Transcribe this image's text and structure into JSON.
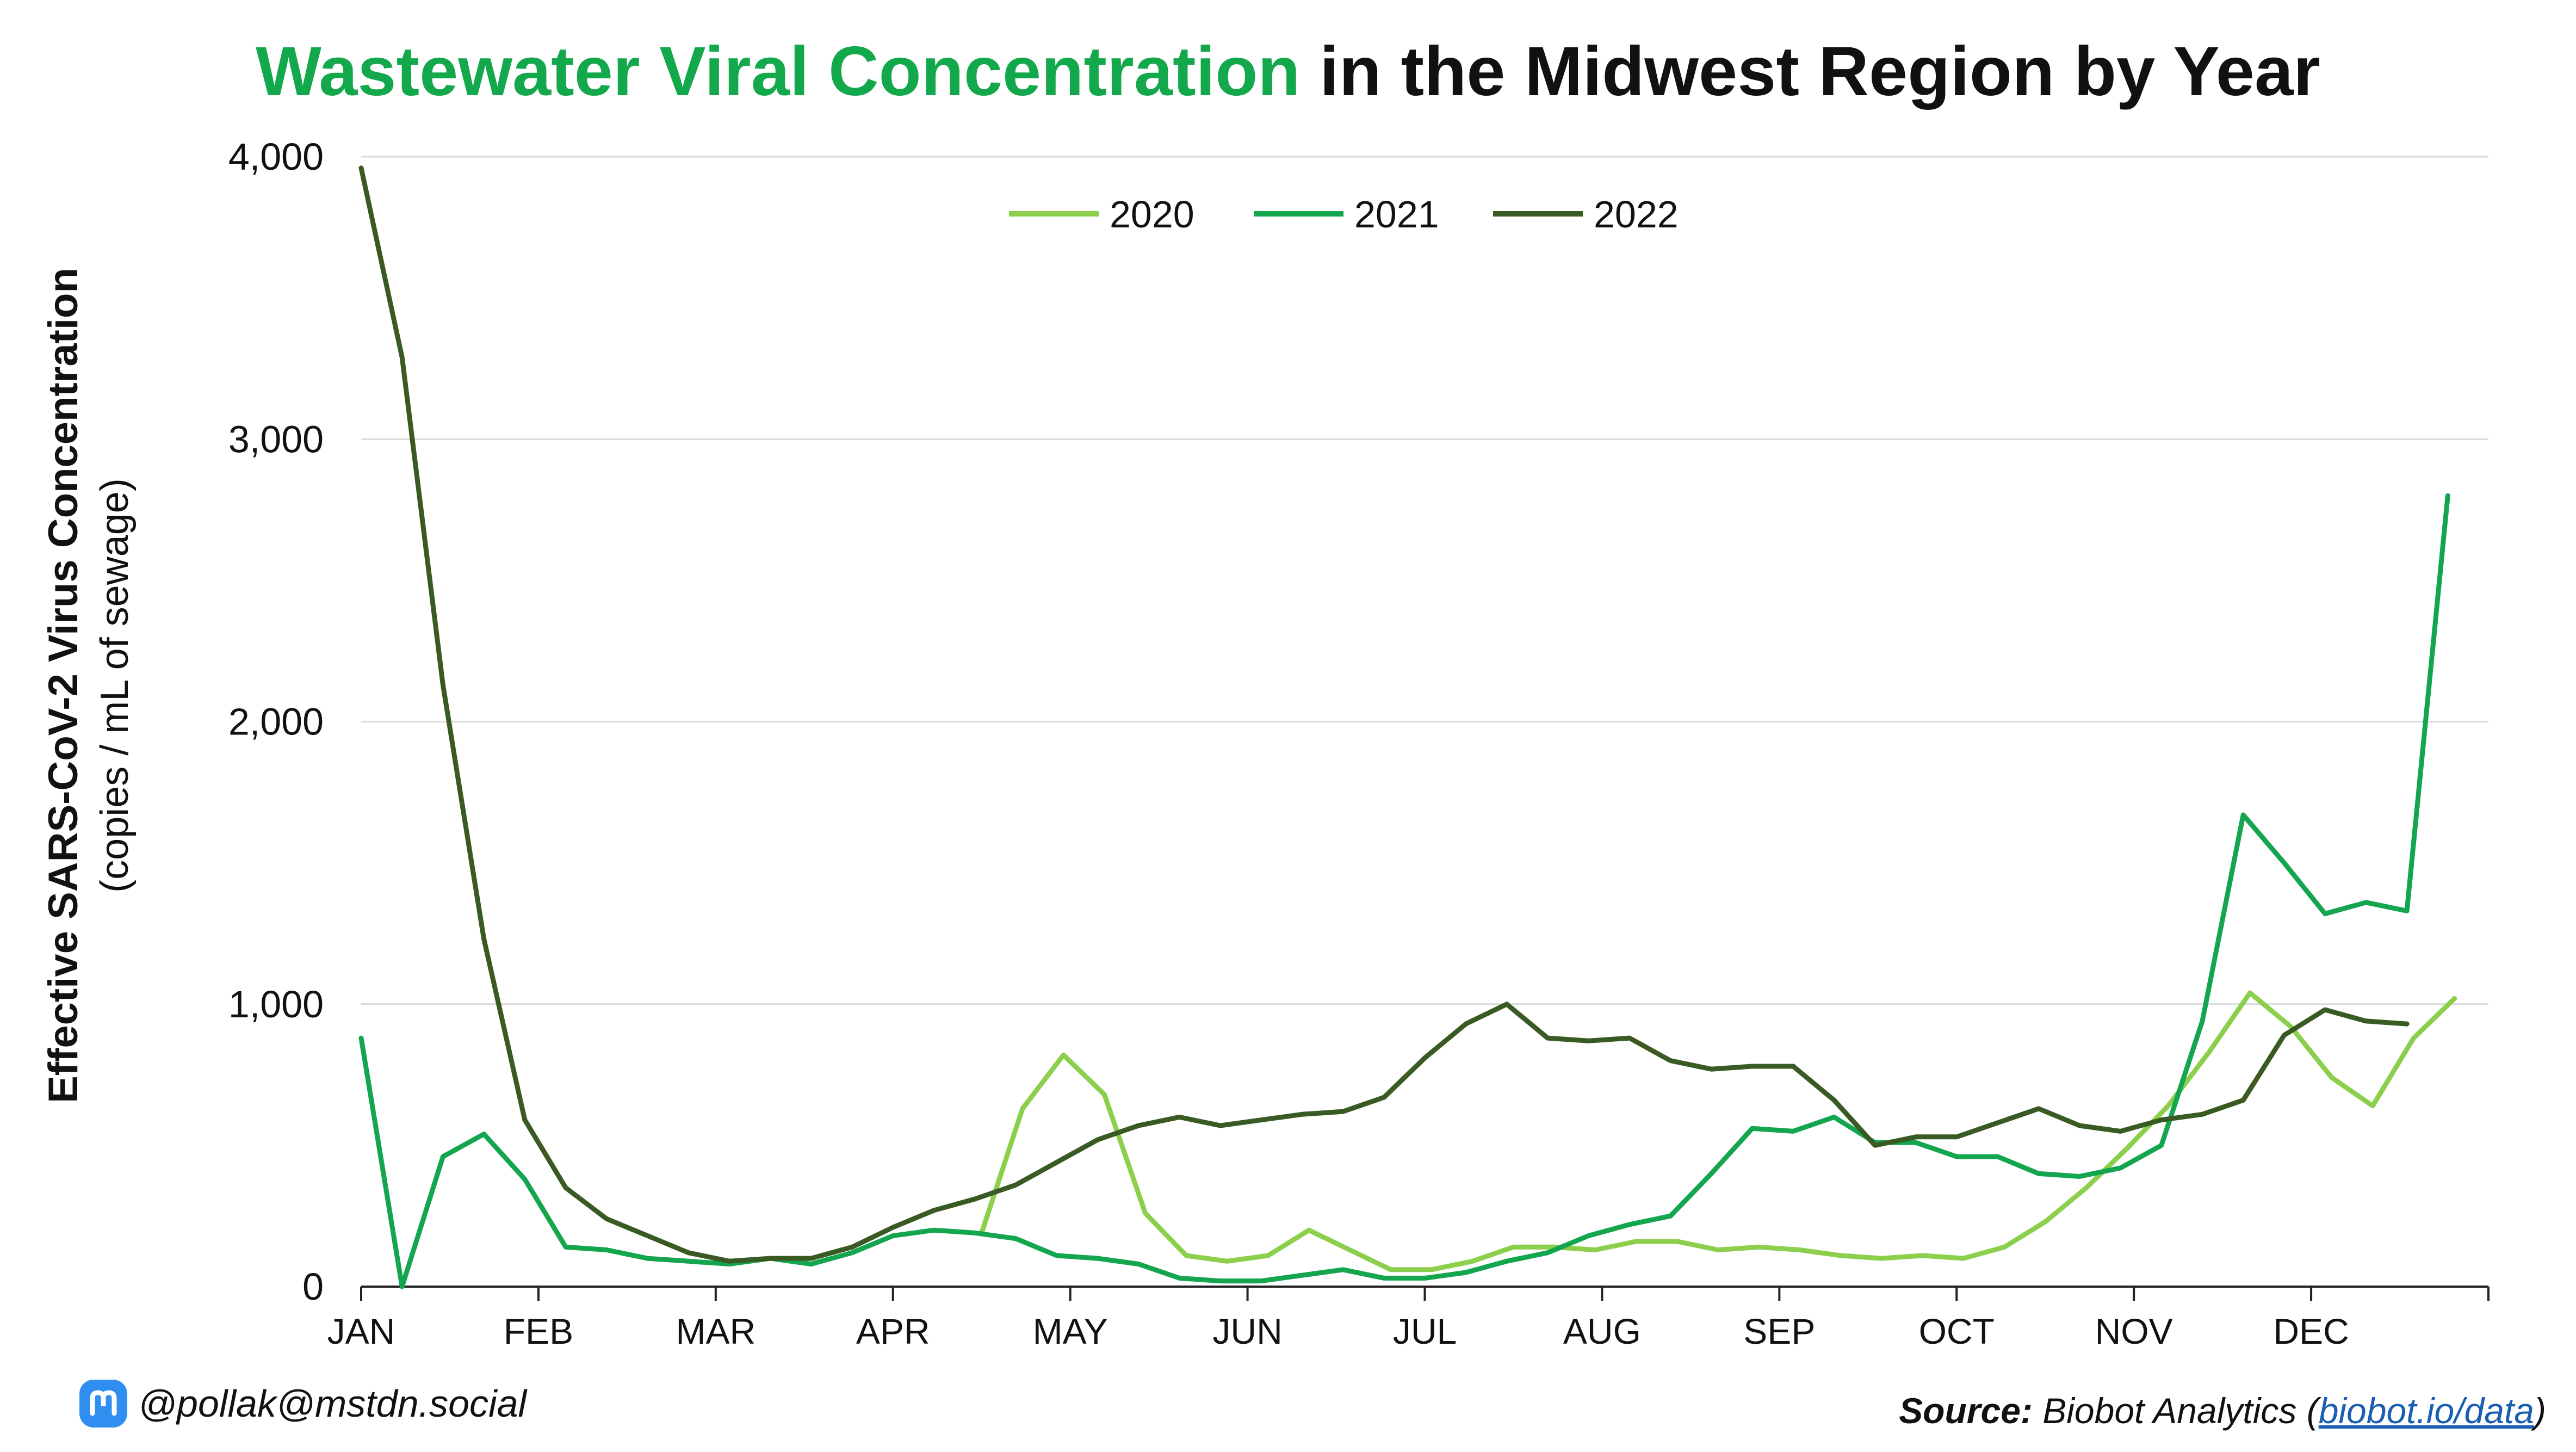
{
  "footer": {
    "handle": "@pollak@mstdn.social",
    "source_label": "Source:",
    "source_text": "Biobot Analytics (",
    "source_link": "biobot.io/data",
    "source_close": ")"
  },
  "colors": {
    "title_green": "#12a84b",
    "series_2020": "#8ccf4d",
    "series_2021": "#13a64e",
    "series_2022": "#3a5a24",
    "gridline": "#d9d9d9",
    "axis": "#222222",
    "mastodon": "#2f8ef0"
  },
  "chart_data": {
    "type": "line",
    "title_highlight": "Wastewater Viral Concentration",
    "title_rest": " in the Midwest Region by Year",
    "ylabel": "Effective SARS-CoV-2 Virus Concentration",
    "ylabel_sub": "(copies / mL of sewage)",
    "ylim": [
      0,
      4000
    ],
    "yticks": [
      0,
      1000,
      2000,
      3000,
      4000
    ],
    "ytick_labels": [
      "0",
      "1,000",
      "2,000",
      "3,000",
      "4,000"
    ],
    "xlim": [
      0,
      12
    ],
    "xticks": [
      0,
      1,
      2,
      3,
      4,
      5,
      6,
      7,
      8,
      9,
      10,
      11
    ],
    "xtick_labels": [
      "JAN",
      "FEB",
      "MAR",
      "APR",
      "MAY",
      "JUN",
      "JUL",
      "AUG",
      "SEP",
      "OCT",
      "NOV",
      "DEC"
    ],
    "grid": true,
    "legend": "top-center",
    "series": [
      {
        "name": "2020",
        "x_start": 3.5,
        "x_step": 0.2308,
        "values": [
          190,
          630,
          820,
          680,
          260,
          110,
          90,
          110,
          200,
          130,
          60,
          60,
          90,
          140,
          140,
          130,
          160,
          160,
          130,
          140,
          130,
          110,
          100,
          110,
          100,
          140,
          230,
          350,
          490,
          640,
          830,
          1040,
          920,
          740,
          640,
          880,
          1020
        ]
      },
      {
        "name": "2021",
        "x_start": 0,
        "x_step": 0.2308,
        "values": [
          880,
          0,
          460,
          540,
          380,
          140,
          130,
          100,
          90,
          80,
          100,
          80,
          120,
          180,
          200,
          190,
          170,
          110,
          100,
          80,
          30,
          20,
          20,
          40,
          60,
          30,
          30,
          50,
          90,
          120,
          180,
          220,
          250,
          400,
          560,
          550,
          600,
          510,
          510,
          460,
          460,
          400,
          390,
          420,
          500,
          940,
          1670,
          1500,
          1320,
          1360,
          1330,
          2800
        ]
      },
      {
        "name": "2022",
        "x_start": 0,
        "x_step": 0.2308,
        "values": [
          3960,
          3290,
          2130,
          1230,
          590,
          350,
          240,
          180,
          120,
          90,
          100,
          100,
          140,
          210,
          270,
          310,
          360,
          440,
          520,
          570,
          600,
          570,
          590,
          610,
          620,
          670,
          810,
          930,
          1000,
          880,
          870,
          880,
          800,
          770,
          780,
          780,
          660,
          500,
          530,
          530,
          580,
          630,
          570,
          550,
          590,
          610,
          660,
          890,
          980,
          940,
          930
        ]
      }
    ]
  }
}
